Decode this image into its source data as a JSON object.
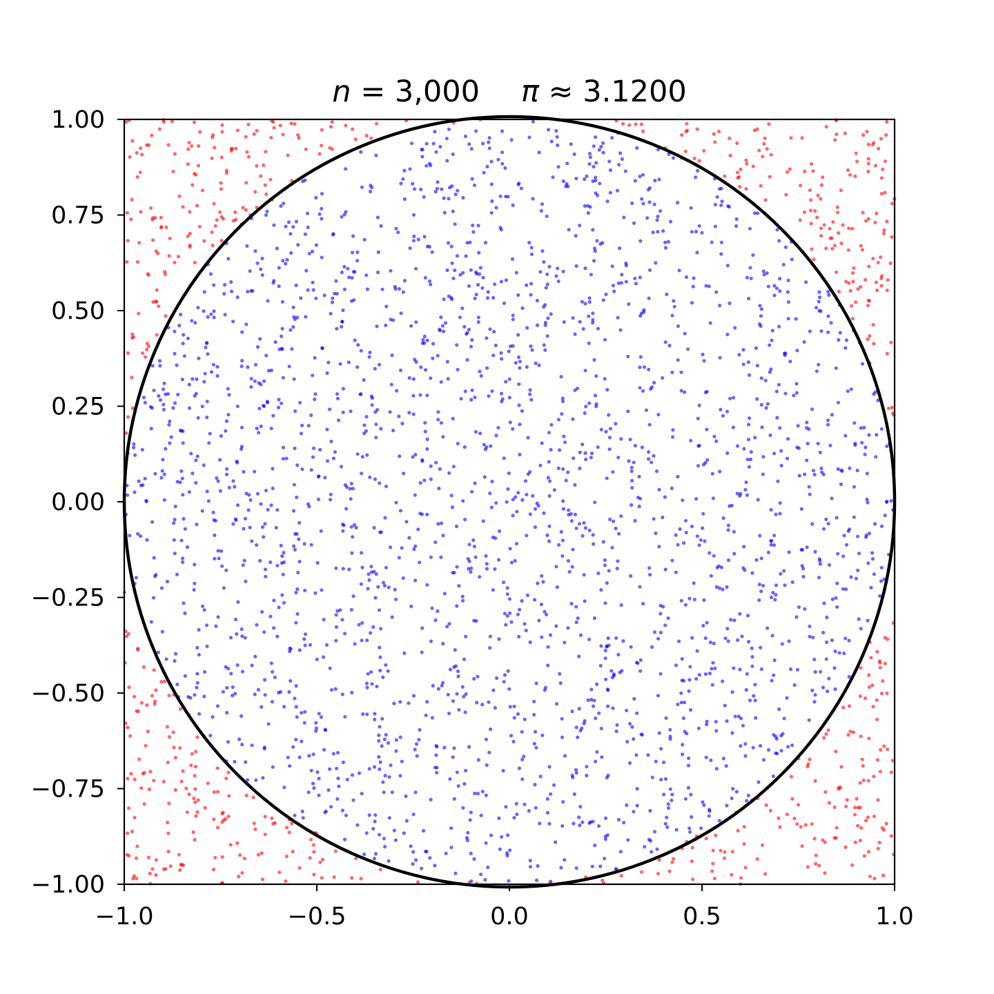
{
  "chart_data": {
    "type": "scatter",
    "title": {
      "n_symbol": "n",
      "n_value": " = 3,000",
      "pi_symbol": "π",
      "pi_value": " ≈ 3.1200"
    },
    "sample_count": 3000,
    "pi_estimate": 3.12,
    "xlim": [
      -1.0,
      1.0
    ],
    "ylim": [
      -1.0,
      1.0
    ],
    "x_ticks": [
      -1.0,
      -0.5,
      0.0,
      0.5,
      1.0
    ],
    "x_tick_labels": [
      "−1.0",
      "−0.5",
      "0.0",
      "0.5",
      "1.0"
    ],
    "y_ticks": [
      1.0,
      0.75,
      0.5,
      0.25,
      0.0,
      -0.25,
      -0.5,
      -0.75,
      -1.0
    ],
    "y_tick_labels": [
      "1.00",
      "0.75",
      "0.50",
      "0.25",
      "0.00",
      "−0.25",
      "−0.50",
      "−0.75",
      "−1.00"
    ],
    "circle": {
      "center": [
        0,
        0
      ],
      "radius": 1,
      "color": "#000000"
    },
    "series": [
      {
        "region": "inside",
        "color": "#0000ff",
        "count": 2340
      },
      {
        "region": "outside",
        "color": "#ff0000",
        "count": 660
      }
    ],
    "grid": false,
    "legend": "none"
  }
}
